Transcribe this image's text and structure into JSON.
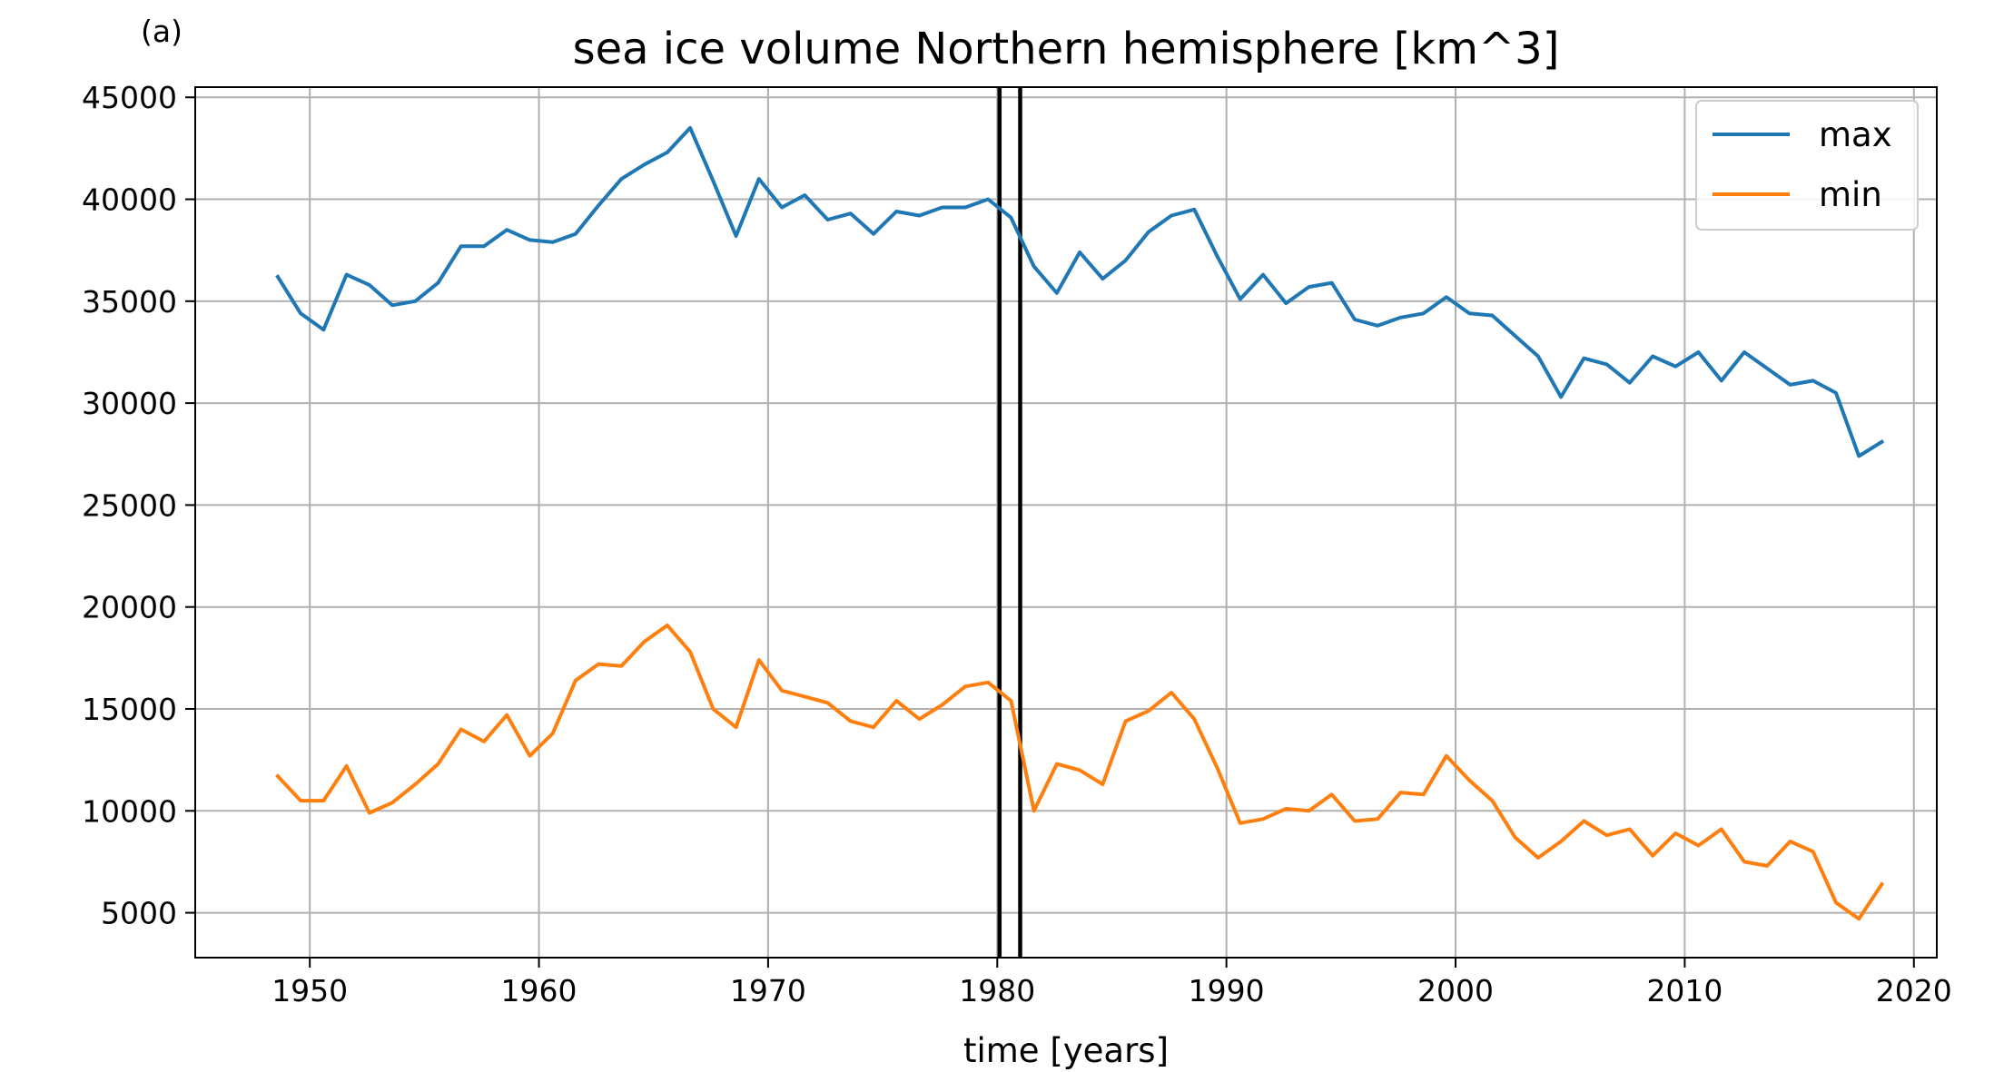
{
  "panel_label": "(a)",
  "chart_data": {
    "type": "line",
    "title": "sea ice volume Northern hemisphere [km^3]",
    "xlabel": "time [years]",
    "ylabel": "",
    "xlim": [
      1945,
      2021
    ],
    "ylim": [
      2800,
      45500
    ],
    "xticks": [
      1950,
      1960,
      1970,
      1980,
      1990,
      2000,
      2010,
      2020
    ],
    "yticks": [
      5000,
      10000,
      15000,
      20000,
      25000,
      30000,
      35000,
      40000,
      45000
    ],
    "grid": true,
    "legend_position": "top-right",
    "vertical_lines": [
      1980.1,
      1981.0
    ],
    "x": [
      1948.6,
      1949.6,
      1950.6,
      1951.6,
      1952.6,
      1953.6,
      1954.6,
      1955.6,
      1956.6,
      1957.6,
      1958.6,
      1959.6,
      1960.6,
      1961.6,
      1962.6,
      1963.6,
      1964.6,
      1965.6,
      1966.6,
      1967.6,
      1968.6,
      1969.6,
      1970.6,
      1971.6,
      1972.6,
      1973.6,
      1974.6,
      1975.6,
      1976.6,
      1977.6,
      1978.6,
      1979.6,
      1980.6,
      1981.6,
      1982.6,
      1983.6,
      1984.6,
      1985.6,
      1986.6,
      1987.6,
      1988.6,
      1989.6,
      1990.6,
      1991.6,
      1992.6,
      1993.6,
      1994.6,
      1995.6,
      1996.6,
      1997.6,
      1998.6,
      1999.6,
      2000.6,
      2001.6,
      2002.6,
      2003.6,
      2004.6,
      2005.6,
      2006.6,
      2007.6,
      2008.6,
      2009.6,
      2010.6,
      2011.6,
      2012.6,
      2013.6,
      2014.6,
      2015.6,
      2016.6,
      2017.6,
      2018.6
    ],
    "series": [
      {
        "name": "max",
        "color": "#1f77b4",
        "values": [
          36200,
          34400,
          33600,
          36300,
          35800,
          34800,
          35000,
          35900,
          37700,
          37700,
          38500,
          38000,
          37900,
          38300,
          39700,
          41000,
          41700,
          42300,
          43500,
          40900,
          38200,
          41000,
          39600,
          40200,
          39000,
          39300,
          38300,
          39400,
          39200,
          39600,
          39600,
          40000,
          39100,
          36700,
          35400,
          37400,
          36100,
          37000,
          38400,
          39200,
          39500,
          37200,
          35100,
          36300,
          34900,
          35700,
          35900,
          34100,
          33800,
          34200,
          34400,
          35200,
          34400,
          34300,
          33300,
          32300,
          30300,
          32200,
          31900,
          31000,
          32300,
          31800,
          32500,
          31100,
          32500,
          31700,
          30900,
          31100,
          30500,
          27400,
          28100
        ]
      },
      {
        "name": "min",
        "color": "#ff7f0e",
        "values": [
          11700,
          10500,
          10500,
          12200,
          9900,
          10400,
          11300,
          12300,
          14000,
          13400,
          14700,
          12700,
          13800,
          16400,
          17200,
          17100,
          18300,
          19100,
          17800,
          15000,
          14100,
          17400,
          15900,
          15600,
          15300,
          14400,
          14100,
          15400,
          14500,
          15200,
          16100,
          16300,
          15400,
          10000,
          12300,
          12000,
          11300,
          14400,
          14900,
          15800,
          14500,
          12100,
          9400,
          9600,
          10100,
          10000,
          10800,
          9500,
          9600,
          10900,
          10800,
          12700,
          11500,
          10500,
          8700,
          7700,
          8500,
          9500,
          8800,
          9100,
          7800,
          8900,
          8300,
          9100,
          7500,
          7300,
          8500,
          8000,
          5500,
          4700,
          6400
        ]
      }
    ]
  }
}
